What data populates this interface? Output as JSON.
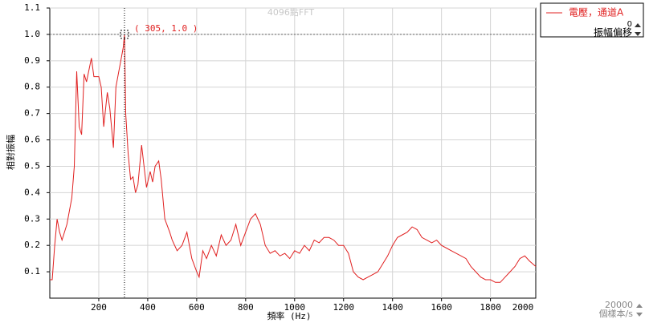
{
  "chart_data": {
    "type": "line",
    "title": "4096點FFT",
    "x_label": "頻率 (Hz)",
    "y_label": "相對振幅",
    "series": [
      {
        "name": "電壓，通道A",
        "color": "#e02020",
        "x": [
          0,
          10,
          20,
          30,
          40,
          50,
          70,
          90,
          100,
          110,
          120,
          130,
          140,
          150,
          170,
          180,
          200,
          210,
          220,
          235,
          245,
          260,
          270,
          280,
          290,
          300,
          305,
          310,
          320,
          330,
          340,
          350,
          360,
          375,
          385,
          395,
          410,
          420,
          430,
          445,
          455,
          470,
          490,
          500,
          520,
          540,
          560,
          580,
          600,
          610,
          625,
          640,
          660,
          680,
          700,
          720,
          740,
          760,
          780,
          800,
          820,
          840,
          860,
          880,
          900,
          920,
          940,
          960,
          980,
          1000,
          1020,
          1040,
          1060,
          1080,
          1100,
          1120,
          1140,
          1160,
          1180,
          1200,
          1220,
          1240,
          1260,
          1280,
          1300,
          1320,
          1340,
          1360,
          1380,
          1400,
          1420,
          1440,
          1460,
          1480,
          1500,
          1520,
          1540,
          1560,
          1580,
          1600,
          1620,
          1640,
          1660,
          1680,
          1700,
          1720,
          1740,
          1760,
          1780,
          1800,
          1820,
          1840,
          1860,
          1880,
          1900,
          1920,
          1940,
          1960,
          1985
        ],
        "values": [
          0.07,
          0.07,
          0.2,
          0.3,
          0.25,
          0.22,
          0.28,
          0.38,
          0.5,
          0.86,
          0.65,
          0.62,
          0.85,
          0.82,
          0.91,
          0.84,
          0.84,
          0.8,
          0.65,
          0.78,
          0.72,
          0.57,
          0.8,
          0.85,
          0.9,
          0.95,
          1.0,
          0.7,
          0.55,
          0.45,
          0.46,
          0.4,
          0.43,
          0.58,
          0.5,
          0.42,
          0.48,
          0.44,
          0.5,
          0.52,
          0.45,
          0.3,
          0.25,
          0.22,
          0.18,
          0.2,
          0.25,
          0.15,
          0.1,
          0.08,
          0.18,
          0.15,
          0.2,
          0.16,
          0.24,
          0.2,
          0.22,
          0.28,
          0.2,
          0.25,
          0.3,
          0.32,
          0.28,
          0.2,
          0.17,
          0.18,
          0.16,
          0.17,
          0.15,
          0.18,
          0.17,
          0.2,
          0.18,
          0.22,
          0.21,
          0.23,
          0.23,
          0.22,
          0.2,
          0.2,
          0.17,
          0.1,
          0.08,
          0.07,
          0.08,
          0.09,
          0.1,
          0.13,
          0.16,
          0.2,
          0.23,
          0.24,
          0.25,
          0.27,
          0.26,
          0.23,
          0.22,
          0.21,
          0.22,
          0.2,
          0.19,
          0.18,
          0.17,
          0.16,
          0.15,
          0.12,
          0.1,
          0.08,
          0.07,
          0.07,
          0.06,
          0.06,
          0.08,
          0.1,
          0.12,
          0.15,
          0.16,
          0.14,
          0.12
        ]
      }
    ],
    "xlim": [
      0,
      1985
    ],
    "xticks": [
      200,
      400,
      600,
      800,
      1000,
      1200,
      1400,
      1600,
      1800,
      2000
    ],
    "ylim": [
      0,
      1.1
    ],
    "yticks": [
      0.1,
      0.2,
      0.3,
      0.4,
      0.5,
      0.6,
      0.7,
      0.8,
      0.9,
      {
        "value": 1,
        "label": "1.0"
      },
      1.1
    ],
    "grid": true,
    "cursor": {
      "x": 305,
      "y": 1.0,
      "label": "( 305, 1.0 )"
    }
  },
  "offset_control": {
    "label": "振幅偏移",
    "value": 0
  },
  "sample_rate_control": {
    "value": 20000,
    "unit": "個樣本/s"
  }
}
